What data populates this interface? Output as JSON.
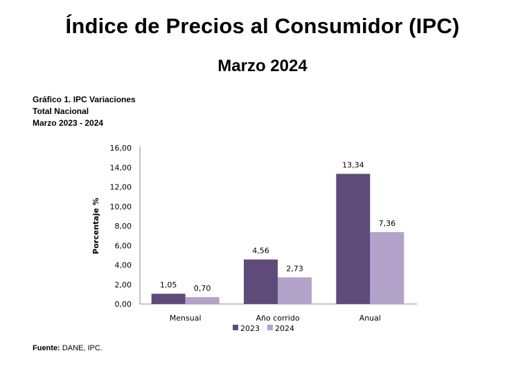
{
  "header": {
    "title": "Índice de Precios al Consumidor (IPC)",
    "subtitle": "Marzo 2024"
  },
  "caption": {
    "line1": "Gráfico 1. IPC Variaciones",
    "line2": "Total Nacional",
    "line3": "Marzo 2023 - 2024"
  },
  "source": {
    "label": "Fuente:",
    "text": " DANE, IPC."
  },
  "chart_data": {
    "type": "bar",
    "categories": [
      "Mensual",
      "Año corrido",
      "Anual"
    ],
    "series": [
      {
        "name": "2023",
        "values": [
          1.05,
          4.56,
          13.34
        ],
        "labels": [
          "1,05",
          "4,56",
          "13,34"
        ],
        "color": "#5f4b7a"
      },
      {
        "name": "2024",
        "values": [
          0.7,
          2.73,
          7.36
        ],
        "labels": [
          "0,70",
          "2,73",
          "7,36"
        ],
        "color": "#b3a2c9"
      }
    ],
    "ylabel": "Porcentaje %",
    "ylim": [
      0,
      16
    ],
    "yticks": [
      "0,00",
      "2,00",
      "4,00",
      "6,00",
      "8,00",
      "10,00",
      "12,00",
      "14,00",
      "16,00"
    ],
    "grid": false,
    "legend": "bottom"
  }
}
